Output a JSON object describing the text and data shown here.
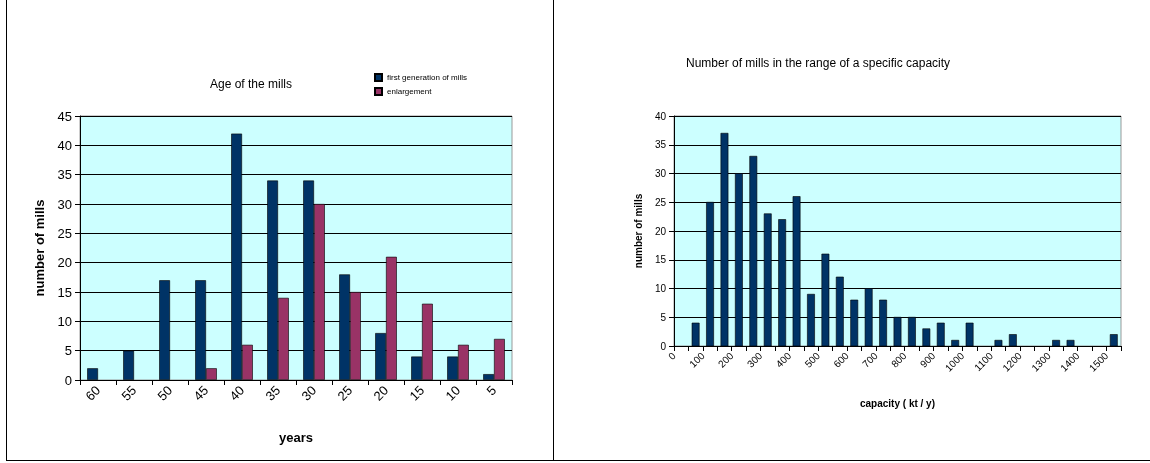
{
  "chart_data": [
    {
      "type": "bar",
      "title": "Age of the mills",
      "xlabel": "years",
      "ylabel": "number of mills",
      "categories": [
        "60",
        "55",
        "50",
        "45",
        "40",
        "35",
        "30",
        "25",
        "20",
        "15",
        "10",
        "5"
      ],
      "series": [
        {
          "name": "first generation of mills",
          "color": "#003366",
          "values": [
            2,
            5,
            17,
            17,
            42,
            34,
            34,
            18,
            8,
            4,
            4,
            1
          ]
        },
        {
          "name": "enlargement",
          "color": "#993366",
          "values": [
            null,
            null,
            null,
            2,
            6,
            14,
            30,
            15,
            21,
            13,
            6,
            7
          ]
        }
      ],
      "ylim": [
        0,
        45
      ],
      "yticks": [
        0,
        5,
        10,
        15,
        20,
        25,
        30,
        35,
        40,
        45
      ],
      "grid": "y",
      "legend": "top right"
    },
    {
      "type": "histogram",
      "title": "Number of mills in the range of a specific capacity",
      "xlabel": "capacity ( kt / y)",
      "ylabel": "number of mills",
      "color": "#003366",
      "bins": [
        0,
        50,
        100,
        150,
        200,
        250,
        300,
        350,
        400,
        450,
        500,
        550,
        600,
        650,
        700,
        750,
        800,
        850,
        900,
        950,
        1000,
        1050,
        1100,
        1150,
        1200,
        1250,
        1300,
        1350,
        1400,
        1450,
        1500,
        1550
      ],
      "values": [
        0,
        4,
        25,
        37,
        30,
        33,
        23,
        22,
        26,
        9,
        16,
        12,
        8,
        10,
        8,
        5,
        5,
        3,
        4,
        1,
        4,
        0,
        1,
        2,
        0,
        0,
        1,
        1,
        0,
        0,
        2
      ],
      "xlim": [
        0,
        1550
      ],
      "xticks": [
        0,
        100,
        200,
        300,
        400,
        500,
        600,
        700,
        800,
        900,
        1000,
        1100,
        1200,
        1300,
        1400,
        1500
      ],
      "ylim": [
        0,
        40
      ],
      "yticks": [
        0,
        5,
        10,
        15,
        20,
        25,
        30,
        35,
        40
      ],
      "grid": "y"
    }
  ]
}
